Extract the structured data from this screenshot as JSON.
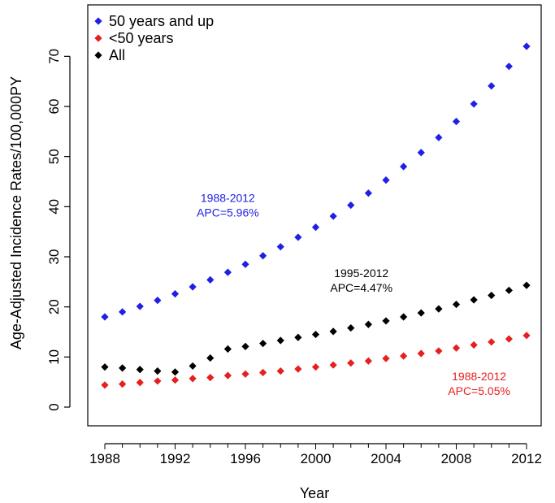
{
  "chart_data": {
    "type": "scatter",
    "title": "",
    "xlabel": "Year",
    "ylabel": "Age-Adjusted Incidence Rates/100,000PY",
    "xlim": [
      1988,
      2012
    ],
    "ylim": [
      0,
      72
    ],
    "x_ticks": [
      1988,
      1992,
      1996,
      2000,
      2004,
      2008,
      2012
    ],
    "y_ticks": [
      0,
      10,
      20,
      30,
      40,
      50,
      60,
      70
    ],
    "legend_position": "top-left",
    "x": [
      1988,
      1989,
      1990,
      1991,
      1992,
      1993,
      1994,
      1995,
      1996,
      1997,
      1998,
      1999,
      2000,
      2001,
      2002,
      2003,
      2004,
      2005,
      2006,
      2007,
      2008,
      2009,
      2010,
      2011,
      2012
    ],
    "series": [
      {
        "name": "50 years and up",
        "color": "#1f1fe6",
        "values": [
          18.0,
          19.0,
          20.1,
          21.3,
          22.6,
          24.0,
          25.4,
          26.9,
          28.5,
          30.2,
          32.0,
          33.9,
          35.9,
          38.1,
          40.3,
          42.7,
          45.3,
          48.0,
          50.8,
          53.8,
          57.0,
          60.5,
          64.1,
          68.0,
          72.0
        ]
      },
      {
        "name": "<50 years",
        "color": "#e61f1f",
        "values": [
          4.4,
          4.6,
          4.9,
          5.2,
          5.4,
          5.7,
          5.9,
          6.3,
          6.6,
          6.9,
          7.2,
          7.6,
          8.0,
          8.4,
          8.8,
          9.2,
          9.7,
          10.2,
          10.7,
          11.2,
          11.8,
          12.4,
          13.0,
          13.6,
          14.3
        ]
      },
      {
        "name": "All",
        "color": "#000000",
        "values": [
          8.0,
          7.8,
          7.5,
          7.2,
          7.0,
          8.2,
          9.8,
          11.6,
          12.1,
          12.7,
          13.3,
          13.9,
          14.5,
          15.1,
          15.8,
          16.5,
          17.2,
          18.0,
          18.8,
          19.6,
          20.5,
          21.4,
          22.3,
          23.3,
          24.3
        ]
      }
    ],
    "annotations": [
      {
        "line1": "1988-2012",
        "line2": "APC=5.96%",
        "color": "#1f1fe6",
        "x": 1995,
        "y": 39.5
      },
      {
        "line1": "1995-2012",
        "line2": "APC=4.47%",
        "color": "#000000",
        "x": 2002.6,
        "y": 24.5
      },
      {
        "line1": "1988-2012",
        "line2": "APC=5.05%",
        "color": "#e61f1f",
        "x": 2009.3,
        "y": 3.9
      }
    ]
  }
}
